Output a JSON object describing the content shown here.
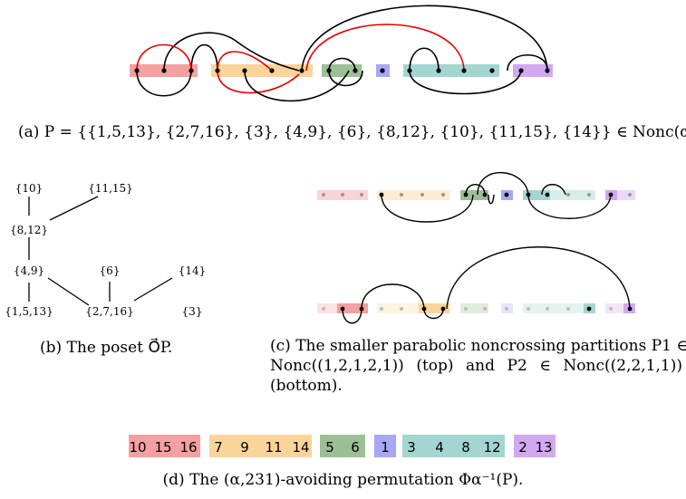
{
  "panel_a": {
    "caption": "(a) P = {{1,5,13}, {2,7,16}, {3}, {4,9}, {6}, {8,12}, {10}, {11,15}, {14}} ∈ Nonc(α).",
    "blocks": [
      {
        "count": 3,
        "color": "#f4a0a0"
      },
      {
        "count": 4,
        "color": "#fbd49a"
      },
      {
        "count": 2,
        "color": "#9cbf96"
      },
      {
        "count": 1,
        "color": "#a8a8f2"
      },
      {
        "count": 4,
        "color": "#a3d6d0"
      },
      {
        "count": 2,
        "color": "#d2a8f0"
      }
    ]
  },
  "panel_b": {
    "caption": "(b) The poset O⃗P.",
    "nodes": [
      "{10}",
      "{11,15}",
      "{8,12}",
      "{4,9}",
      "{6}",
      "{14}",
      "{1,5,13}",
      "{2,7,16}",
      "{3}"
    ]
  },
  "panel_c": {
    "caption_line1": "(c) The smaller parabolic noncrossing partitions P1 ∈",
    "caption_line2": "Nonc((1,2,1,2,1)) (top) and P2 ∈ Nonc((2,2,1,1))",
    "caption_line3": "(bottom)."
  },
  "panel_d": {
    "caption": "(d) The (α,231)-avoiding permutation Φα⁻¹(P).",
    "blocks": [
      {
        "values": [
          "10",
          "15",
          "16"
        ],
        "color": "#f4a0a0"
      },
      {
        "values": [
          "7",
          "9",
          "11",
          "14"
        ],
        "color": "#fbd49a"
      },
      {
        "values": [
          "5",
          "6"
        ],
        "color": "#9cbf96"
      },
      {
        "values": [
          "1"
        ],
        "color": "#a8a8f2"
      },
      {
        "values": [
          "3",
          "4",
          "8",
          "12"
        ],
        "color": "#a3d6d0"
      },
      {
        "values": [
          "2",
          "13"
        ],
        "color": "#d2a8f0"
      }
    ]
  }
}
